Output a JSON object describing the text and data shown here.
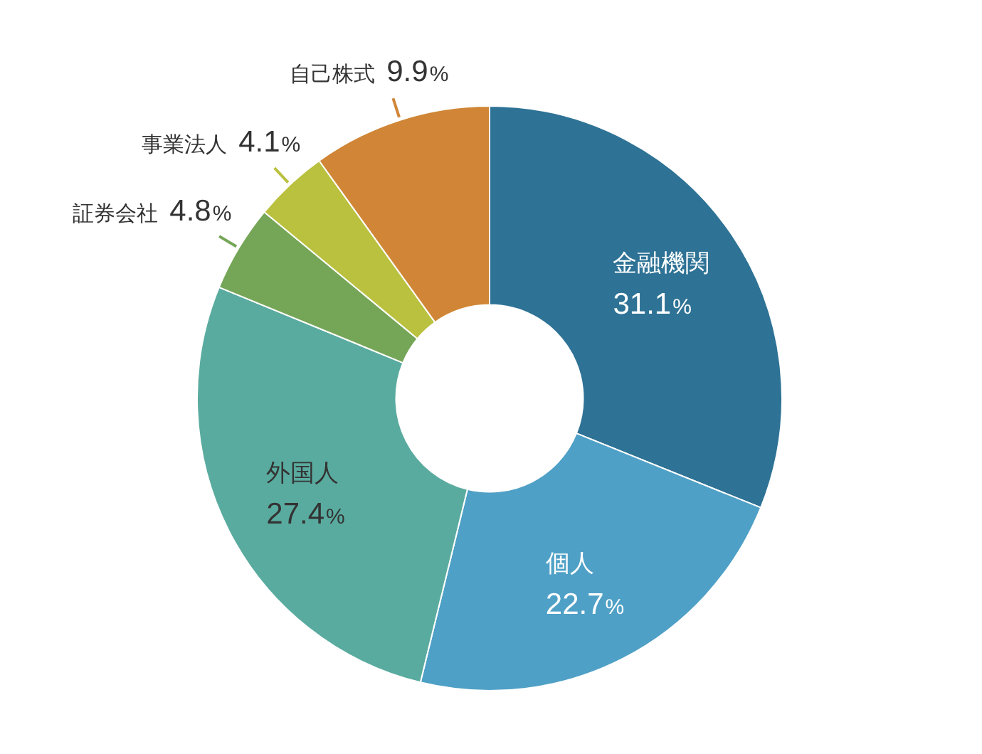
{
  "chart_data": {
    "type": "donut",
    "categories": [
      "金融機関",
      "個人",
      "外国人",
      "証券会社",
      "事業法人",
      "自己株式"
    ],
    "values": [
      31.1,
      22.7,
      27.4,
      4.8,
      4.1,
      9.9
    ],
    "colors": [
      "#2e7295",
      "#4fa0c6",
      "#5aab9f",
      "#75a657",
      "#b9c13f",
      "#d08636"
    ],
    "value_labels": [
      "31.1%",
      "22.7%",
      "27.4%",
      "4.8%",
      "4.1%",
      "9.9%"
    ],
    "legend": false
  }
}
